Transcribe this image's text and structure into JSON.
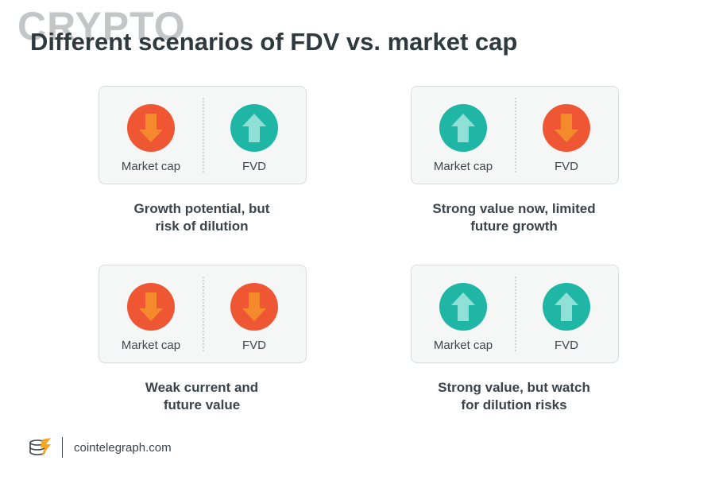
{
  "watermark": "CRYPTO",
  "title": "Different scenarios of FDV vs. market cap",
  "scenarios": [
    {
      "left": {
        "label": "Market cap",
        "direction": "down",
        "icon": "arrow-down-icon"
      },
      "right": {
        "label": "FVD",
        "direction": "up",
        "icon": "arrow-up-icon"
      },
      "caption_line1": "Growth potential, but",
      "caption_line2": "risk of dilution"
    },
    {
      "left": {
        "label": "Market cap",
        "direction": "up",
        "icon": "arrow-up-icon"
      },
      "right": {
        "label": "FVD",
        "direction": "down",
        "icon": "arrow-down-icon"
      },
      "caption_line1": "Strong value now, limited",
      "caption_line2": "future growth"
    },
    {
      "left": {
        "label": "Market cap",
        "direction": "down",
        "icon": "arrow-down-icon"
      },
      "right": {
        "label": "FVD",
        "direction": "down",
        "icon": "arrow-down-icon"
      },
      "caption_line1": "Weak current and",
      "caption_line2": "future value"
    },
    {
      "left": {
        "label": "Market cap",
        "direction": "up",
        "icon": "arrow-up-icon"
      },
      "right": {
        "label": "FVD",
        "direction": "up",
        "icon": "arrow-up-icon"
      },
      "caption_line1": "Strong value, but watch",
      "caption_line2": "for dilution risks"
    }
  ],
  "colors": {
    "down": "#ef5734",
    "down_arrow": "#f58a2c",
    "up": "#1fb6a6",
    "up_arrow": "#8fe0d6"
  },
  "footer": {
    "site": "cointelegraph.com",
    "logo_icon": "cointelegraph-logo-icon"
  }
}
